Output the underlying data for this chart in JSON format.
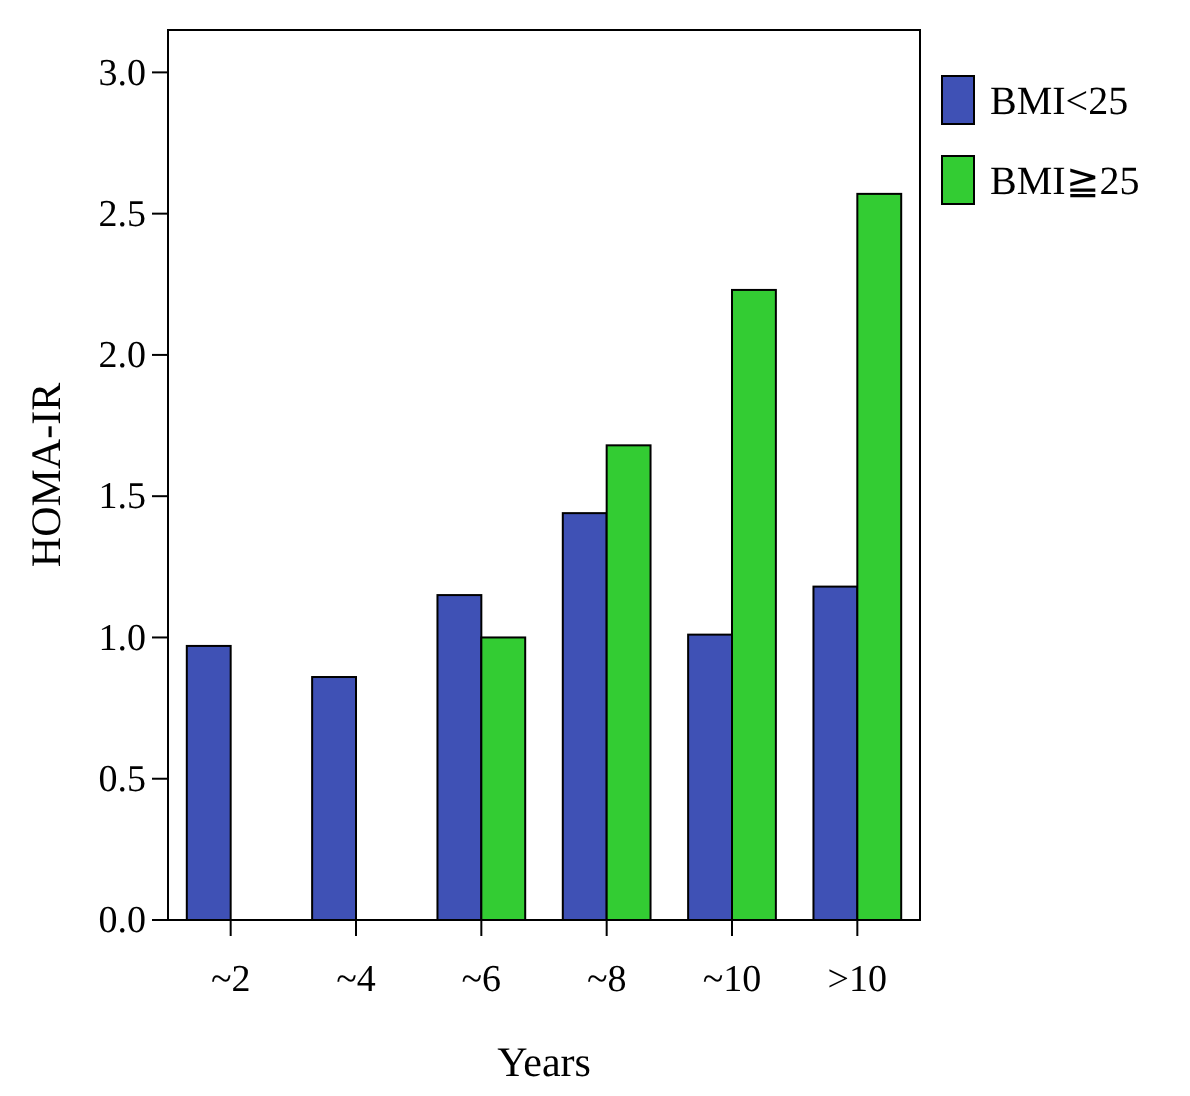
{
  "chart_data": {
    "type": "bar",
    "xlabel": "Years",
    "ylabel": "HOMA-IR",
    "categories": [
      "~2",
      "~4",
      "~6",
      "~8",
      "~10",
      ">10"
    ],
    "series": [
      {
        "name": "BMI<25",
        "color": "#3f51b5",
        "values": [
          0.97,
          0.86,
          1.15,
          1.44,
          1.01,
          1.18
        ]
      },
      {
        "name": "BMI≧25",
        "color": "#33cc33",
        "values": [
          null,
          null,
          1.0,
          1.68,
          2.23,
          2.57
        ]
      }
    ],
    "ylim": [
      0,
      3.15
    ],
    "yticks": [
      {
        "value": 0,
        "label": "0.0"
      },
      {
        "value": 0.5,
        "label": "0.5"
      },
      {
        "value": 1,
        "label": "1.0"
      },
      {
        "value": 1.5,
        "label": "1.5"
      },
      {
        "value": 2,
        "label": "2.0"
      },
      {
        "value": 2.5,
        "label": "2.5"
      },
      {
        "value": 3,
        "label": "3.0"
      }
    ],
    "grid": false,
    "legend": "top right"
  }
}
